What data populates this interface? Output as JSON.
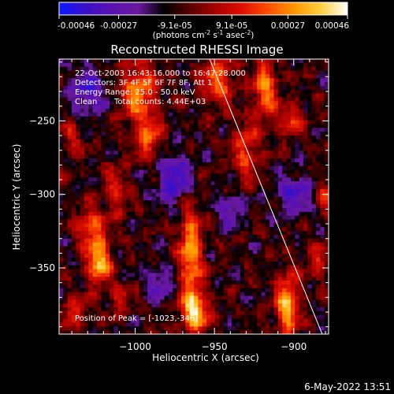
{
  "footer": {
    "timestamp": "6-May-2022 13:51"
  },
  "colorbar": {
    "ticks": [
      "-0.00046",
      "-0.00027",
      "-9.1e-05",
      "9.1e-05",
      "0.00027",
      "0.00046"
    ],
    "tick_values": [
      -0.00046,
      -0.00027,
      -9.1e-05,
      9.1e-05,
      0.00027,
      0.00046
    ],
    "range": [
      -0.00046,
      0.00046
    ],
    "unit_label": {
      "pre": "(photons cm",
      "sup1": "-2",
      "mid": " s",
      "sup2": "-1",
      "post": " asec",
      "sup3": "-2",
      "close": ")"
    },
    "colors": [
      "#0a1aff",
      "#3b10c9",
      "#5a10b0",
      "#6a1aa0",
      "#000000",
      "#5a0000",
      "#aa0000",
      "#e01000",
      "#ff5000",
      "#ff9a00",
      "#ffd040",
      "#ffffff"
    ]
  },
  "chart_data": {
    "type": "heatmap",
    "title": "Reconstructed RHESSI Image",
    "xlabel": "Heliocentric X (arcsec)",
    "ylabel": "Heliocentric Y (arcsec)",
    "xlim": [
      -1048,
      -878
    ],
    "ylim": [
      -395,
      -208
    ],
    "xticks": [
      {
        "value": -1000,
        "label": "−1000"
      },
      {
        "value": -950,
        "label": "−950"
      },
      {
        "value": -900,
        "label": "−900"
      }
    ],
    "yticks": [
      {
        "value": -250,
        "label": "−250"
      },
      {
        "value": -300,
        "label": "−300"
      },
      {
        "value": -350,
        "label": "−350"
      }
    ],
    "info_lines": [
      "22-Oct-2003 16:43:16.000 to 16:47:28.000",
      "Detectors: 3F 4F 5F 6F 7F 8F, Att 1",
      "Energy Range: 25.0 - 50.0 keV"
    ],
    "clean_label": "Clean",
    "total_counts": "Total counts: 4.44E+03",
    "peak_label": "Position of Peak = [-1023,-346]",
    "peak": [
      -1023,
      -346
    ],
    "limb_line": {
      "x": [
        -953,
        -882
      ],
      "y": [
        -208,
        -395
      ]
    },
    "grid": false,
    "grid_cells": [
      64,
      72
    ],
    "colormap": "blue-purple-black-red-yellow-white",
    "hotspots": [
      {
        "x": -1023,
        "y": -346,
        "amp": 1.15,
        "sx": 5,
        "sy": 10
      },
      {
        "x": -1028,
        "y": -322,
        "amp": 0.75,
        "sx": 6,
        "sy": 9
      },
      {
        "x": -998,
        "y": -230,
        "amp": 0.85,
        "sx": 8,
        "sy": 14
      },
      {
        "x": -992,
        "y": -262,
        "amp": 0.7,
        "sx": 6,
        "sy": 10
      },
      {
        "x": -965,
        "y": -340,
        "amp": 0.95,
        "sx": 5,
        "sy": 24
      },
      {
        "x": -962,
        "y": -380,
        "amp": 1.05,
        "sx": 6,
        "sy": 9
      },
      {
        "x": -948,
        "y": -222,
        "amp": 0.75,
        "sx": 7,
        "sy": 12
      },
      {
        "x": -930,
        "y": -270,
        "amp": 0.6,
        "sx": 6,
        "sy": 14
      },
      {
        "x": -918,
        "y": -228,
        "amp": 0.9,
        "sx": 5,
        "sy": 14
      },
      {
        "x": -902,
        "y": -250,
        "amp": 0.6,
        "sx": 5,
        "sy": 8
      },
      {
        "x": -904,
        "y": -375,
        "amp": 1.05,
        "sx": 5,
        "sy": 14
      },
      {
        "x": -885,
        "y": -345,
        "amp": 0.5,
        "sx": 5,
        "sy": 8
      },
      {
        "x": -1040,
        "y": -262,
        "amp": 0.4,
        "sx": 5,
        "sy": 8
      },
      {
        "x": -1012,
        "y": -298,
        "amp": 0.5,
        "sx": 5,
        "sy": 12
      },
      {
        "x": -1038,
        "y": -380,
        "amp": 0.5,
        "sx": 6,
        "sy": 8
      },
      {
        "x": -1010,
        "y": -370,
        "amp": 0.45,
        "sx": 5,
        "sy": 7
      },
      {
        "x": -880,
        "y": -300,
        "amp": 0.45,
        "sx": 4,
        "sy": 9
      },
      {
        "x": -975,
        "y": -290,
        "amp": -0.7,
        "sx": 8,
        "sy": 12
      },
      {
        "x": -1030,
        "y": -230,
        "amp": -0.65,
        "sx": 8,
        "sy": 10
      },
      {
        "x": -900,
        "y": -300,
        "amp": -0.55,
        "sx": 8,
        "sy": 10
      },
      {
        "x": -985,
        "y": -360,
        "amp": -0.5,
        "sx": 6,
        "sy": 8
      },
      {
        "x": -940,
        "y": -310,
        "amp": -0.5,
        "sx": 6,
        "sy": 8
      }
    ]
  }
}
